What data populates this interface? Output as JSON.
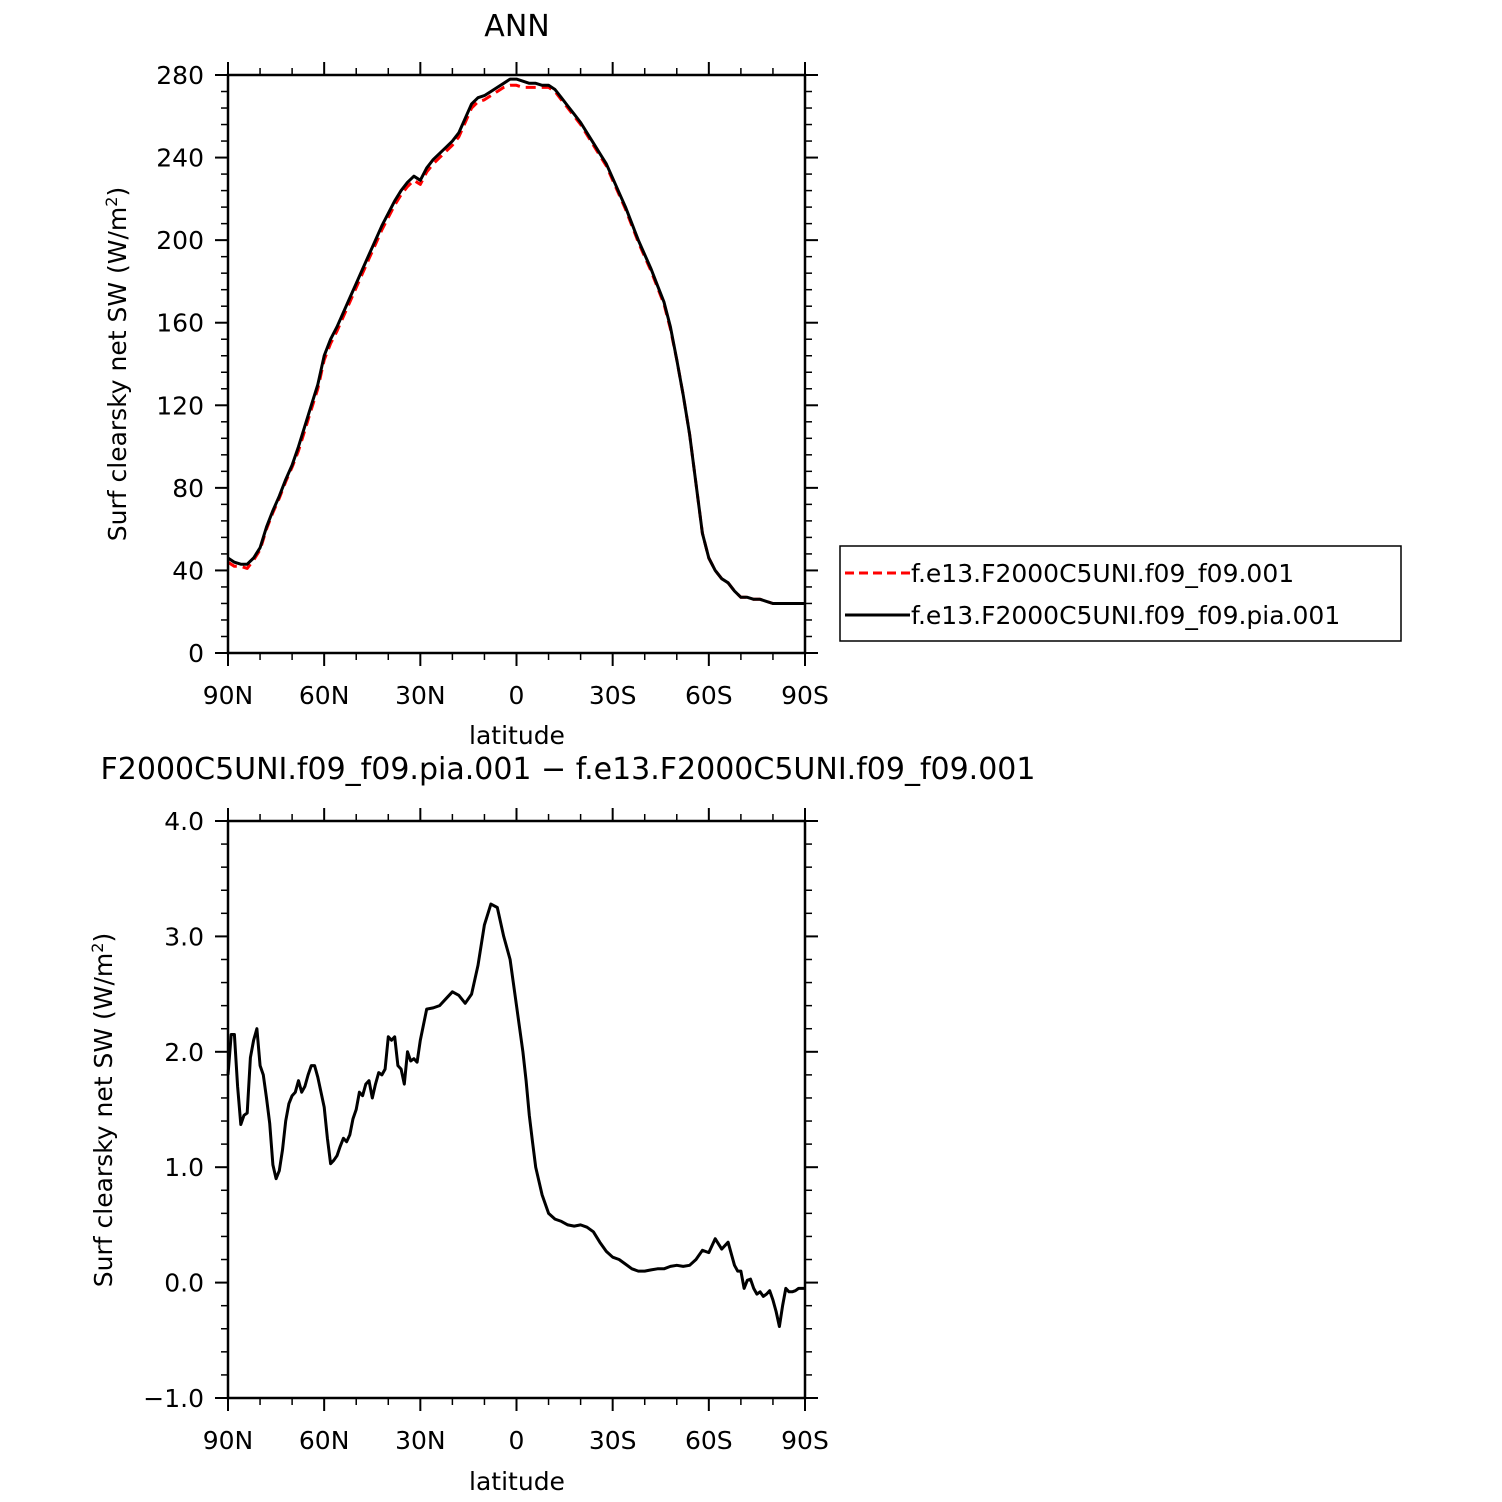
{
  "chart_data": [
    {
      "type": "line",
      "title": "ANN",
      "xlabel": "latitude",
      "ylabel": "Surf clearsky net SW (W/m",
      "ylabel_sup": "2",
      "ylabel_close": ")",
      "xlim": [
        90,
        -90
      ],
      "ylim": [
        0,
        280
      ],
      "xticks": [
        90,
        60,
        30,
        0,
        -30,
        -60,
        -90
      ],
      "xtick_labels": [
        "90N",
        "60N",
        "30N",
        "0",
        "30S",
        "60S",
        "90S"
      ],
      "yticks": [
        0,
        40,
        80,
        120,
        160,
        200,
        240,
        280
      ],
      "ytick_labels": [
        "0",
        "40",
        "80",
        "120",
        "160",
        "200",
        "240",
        "280"
      ],
      "legend": "right",
      "series": [
        {
          "name": "f.e13.F2000C5UNI.f09_f09.001",
          "color": "#ff0000",
          "dash": true,
          "x": [
            90,
            88,
            86,
            84,
            82,
            80,
            78,
            76,
            74,
            72,
            70,
            68,
            66,
            64,
            62,
            60,
            58,
            56,
            54,
            52,
            50,
            48,
            46,
            44,
            42,
            40,
            38,
            36,
            34,
            32,
            30,
            28,
            26,
            24,
            22,
            20,
            18,
            16,
            14,
            12,
            10,
            8,
            6,
            4,
            2,
            0,
            -2,
            -4,
            -6,
            -8,
            -10,
            -12,
            -14,
            -16,
            -18,
            -20,
            -22,
            -24,
            -26,
            -28,
            -30,
            -32,
            -34,
            -36,
            -38,
            -40,
            -42,
            -44,
            -46,
            -48,
            -50,
            -52,
            -54,
            -56,
            -58,
            -60,
            -62,
            -64,
            -66,
            -68,
            -70,
            -72,
            -74,
            -76,
            -78,
            -80,
            -82,
            -84,
            -86,
            -88,
            -90
          ],
          "y": [
            44,
            42,
            42,
            41,
            45,
            50,
            60,
            68,
            75,
            83,
            90,
            98,
            108,
            118,
            128,
            142,
            150,
            156,
            163,
            170,
            177,
            184,
            191,
            198,
            205,
            211,
            217,
            222,
            226,
            229,
            227,
            233,
            237,
            240,
            243,
            246,
            250,
            257,
            264,
            267,
            268,
            270,
            272,
            274,
            275,
            275,
            274,
            274,
            274,
            274,
            274,
            272,
            268,
            264,
            260,
            256,
            251,
            246,
            241,
            236,
            229,
            222,
            215,
            207,
            199,
            192,
            185,
            177,
            169,
            157,
            142,
            125,
            106,
            82,
            58,
            46,
            40,
            36,
            34,
            30,
            27,
            27,
            26,
            26,
            25,
            24,
            24,
            24,
            24,
            24,
            24
          ]
        },
        {
          "name": "f.e13.F2000C5UNI.f09_f09.pia.001",
          "color": "#000000",
          "dash": false,
          "x": [
            90,
            88,
            86,
            84,
            82,
            80,
            78,
            76,
            74,
            72,
            70,
            68,
            66,
            64,
            62,
            60,
            58,
            56,
            54,
            52,
            50,
            48,
            46,
            44,
            42,
            40,
            38,
            36,
            34,
            32,
            30,
            28,
            26,
            24,
            22,
            20,
            18,
            16,
            14,
            12,
            10,
            8,
            6,
            4,
            2,
            0,
            -2,
            -4,
            -6,
            -8,
            -10,
            -12,
            -14,
            -16,
            -18,
            -20,
            -22,
            -24,
            -26,
            -28,
            -30,
            -32,
            -34,
            -36,
            -38,
            -40,
            -42,
            -44,
            -46,
            -48,
            -50,
            -52,
            -54,
            -56,
            -58,
            -60,
            -62,
            -64,
            -66,
            -68,
            -70,
            -72,
            -74,
            -76,
            -78,
            -80,
            -82,
            -84,
            -86,
            -88,
            -90
          ],
          "y": [
            46,
            44,
            43,
            43,
            46,
            51,
            61,
            69,
            76,
            84,
            91,
            100,
            110,
            120,
            130,
            144,
            152,
            158,
            165,
            172,
            179,
            186,
            193,
            200,
            207,
            213,
            219,
            224,
            228,
            231,
            229,
            235,
            239,
            242,
            245,
            248,
            252,
            259,
            266,
            269,
            270,
            272,
            274,
            276,
            278,
            278,
            277,
            276,
            276,
            275,
            275,
            273,
            269,
            265,
            261,
            257,
            252,
            247,
            242,
            237,
            230,
            223,
            216,
            208,
            200,
            193,
            186,
            178,
            170,
            158,
            142,
            125,
            106,
            82,
            58,
            46,
            40,
            36,
            34,
            30,
            27,
            27,
            26,
            26,
            25,
            24,
            24,
            24,
            24,
            24,
            24
          ]
        }
      ]
    },
    {
      "type": "line",
      "title": "F2000C5UNI.f09_f09.pia.001 − f.e13.F2000C5UNI.f09_f09.001",
      "xlabel": "latitude",
      "ylabel": "Surf clearsky net SW (W/m",
      "ylabel_sup": "2",
      "ylabel_close": ")",
      "xlim": [
        90,
        -90
      ],
      "ylim": [
        -1.0,
        4.0
      ],
      "xticks": [
        90,
        60,
        30,
        0,
        -30,
        -60,
        -90
      ],
      "xtick_labels": [
        "90N",
        "60N",
        "30N",
        "0",
        "30S",
        "60S",
        "90S"
      ],
      "yticks": [
        -1.0,
        0.0,
        1.0,
        2.0,
        3.0,
        4.0
      ],
      "ytick_labels": [
        "−1.0",
        "0.0",
        "1.0",
        "2.0",
        "3.0",
        "4.0"
      ],
      "series": [
        {
          "color": "#000000",
          "dash": false,
          "x": [
            90,
            89,
            88,
            87,
            86,
            85,
            84,
            83,
            82,
            81,
            80,
            79,
            78,
            77,
            76,
            75,
            74,
            73,
            72,
            71,
            70,
            69,
            68,
            67,
            66,
            65,
            64,
            63,
            62,
            61,
            60,
            59,
            58,
            57,
            56,
            55,
            54,
            53,
            52,
            51,
            50,
            49,
            48,
            47,
            46,
            45,
            44,
            43,
            42,
            41,
            40,
            39,
            38,
            37,
            36,
            35,
            34,
            33,
            32,
            31,
            30,
            28,
            26,
            24,
            22,
            20,
            18,
            16,
            14,
            12,
            10,
            8,
            6,
            4,
            2,
            1,
            0,
            -1,
            -2,
            -3,
            -4,
            -5,
            -6,
            -8,
            -10,
            -12,
            -14,
            -16,
            -18,
            -20,
            -22,
            -24,
            -26,
            -28,
            -30,
            -32,
            -34,
            -36,
            -38,
            -40,
            -42,
            -44,
            -46,
            -48,
            -50,
            -52,
            -54,
            -56,
            -58,
            -60,
            -62,
            -64,
            -66,
            -67,
            -68,
            -69,
            -70,
            -71,
            -72,
            -73,
            -74,
            -75,
            -76,
            -77,
            -78,
            -79,
            -80,
            -81,
            -82,
            -83,
            -84,
            -85,
            -86,
            -87,
            -88,
            -89,
            -90
          ],
          "y": [
            1.8,
            2.15,
            2.15,
            1.7,
            1.37,
            1.45,
            1.47,
            1.95,
            2.1,
            2.2,
            1.88,
            1.8,
            1.6,
            1.38,
            1.02,
            0.9,
            0.97,
            1.15,
            1.4,
            1.55,
            1.62,
            1.65,
            1.75,
            1.65,
            1.7,
            1.8,
            1.88,
            1.88,
            1.78,
            1.65,
            1.52,
            1.25,
            1.03,
            1.06,
            1.1,
            1.18,
            1.25,
            1.22,
            1.28,
            1.42,
            1.5,
            1.65,
            1.62,
            1.72,
            1.75,
            1.6,
            1.72,
            1.82,
            1.8,
            1.85,
            2.13,
            2.1,
            2.13,
            1.88,
            1.85,
            1.72,
            2.0,
            1.92,
            1.94,
            1.91,
            2.1,
            2.37,
            2.38,
            2.4,
            2.46,
            2.52,
            2.49,
            2.42,
            2.5,
            2.75,
            3.1,
            3.28,
            3.25,
            3.0,
            2.8,
            2.6,
            2.4,
            2.2,
            2.0,
            1.75,
            1.45,
            1.22,
            1.0,
            0.76,
            0.6,
            0.55,
            0.53,
            0.5,
            0.49,
            0.5,
            0.48,
            0.44,
            0.35,
            0.27,
            0.22,
            0.2,
            0.16,
            0.12,
            0.1,
            0.1,
            0.11,
            0.12,
            0.12,
            0.14,
            0.15,
            0.14,
            0.15,
            0.2,
            0.28,
            0.26,
            0.38,
            0.29,
            0.35,
            0.25,
            0.15,
            0.1,
            0.1,
            -0.05,
            0.02,
            0.03,
            -0.05,
            -0.1,
            -0.08,
            -0.12,
            -0.1,
            -0.07,
            -0.15,
            -0.25,
            -0.38,
            -0.2,
            -0.05,
            -0.08,
            -0.08,
            -0.07,
            -0.05,
            -0.05,
            -0.05
          ]
        }
      ]
    }
  ]
}
